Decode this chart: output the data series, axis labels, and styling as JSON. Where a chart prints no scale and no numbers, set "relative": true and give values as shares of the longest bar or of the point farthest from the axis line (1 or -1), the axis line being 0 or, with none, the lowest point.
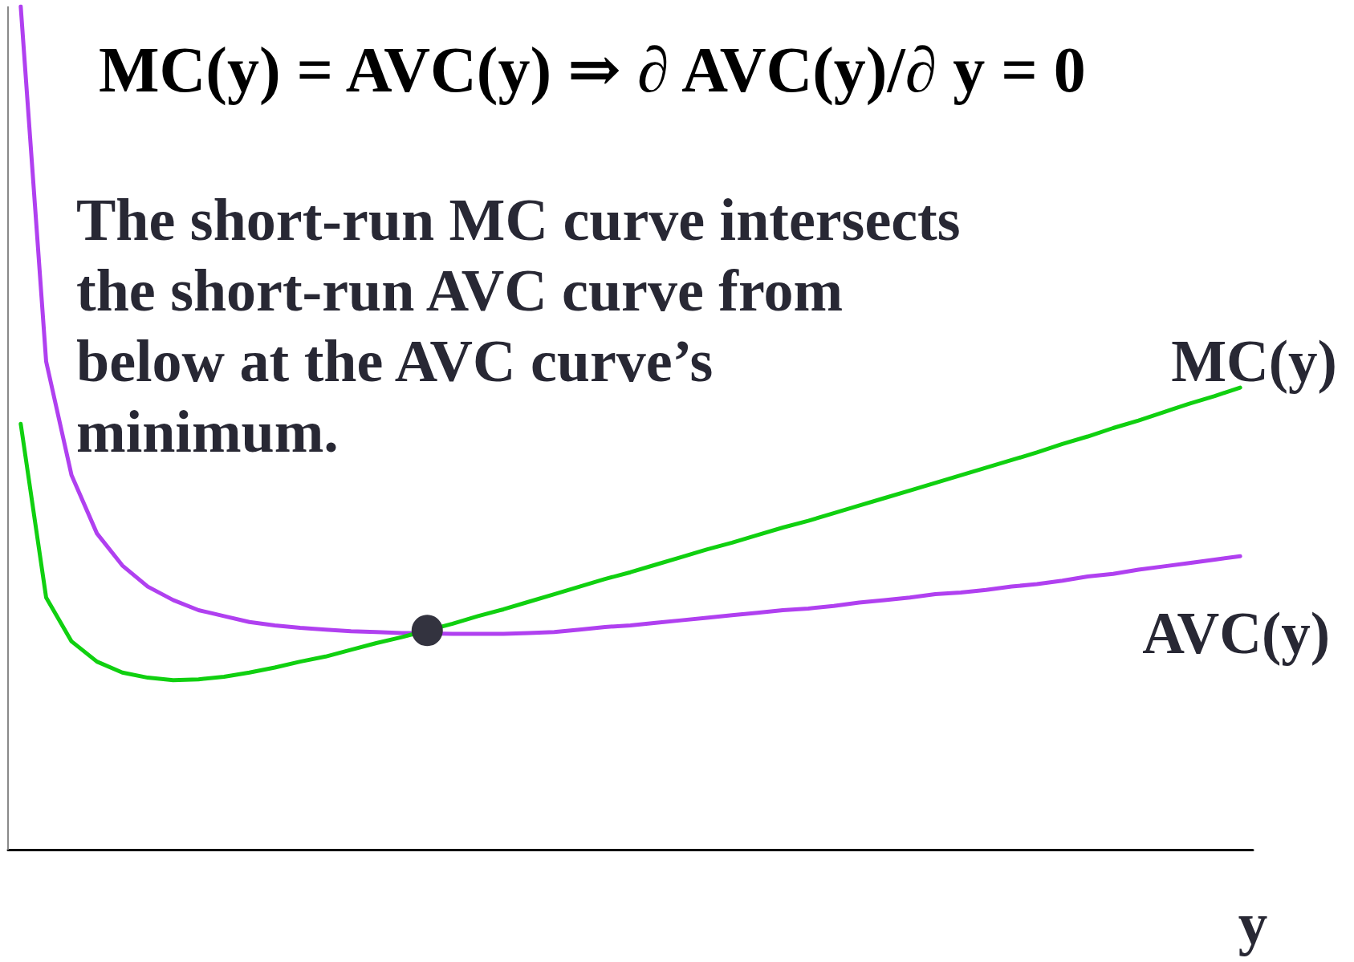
{
  "chart_data": {
    "type": "line",
    "title": "MC(y) = AVC(y) ⇒ ∂ AVC(y)/∂ y = 0",
    "xlabel": "y",
    "relative": true,
    "annotations": [
      "The short-run MC curve intersects\nthe short-run AVC curve from\nbelow at the AVC curve’s\nminimum."
    ],
    "categories": [
      null,
      null,
      null,
      null,
      null,
      null,
      null,
      null,
      null,
      null,
      null,
      null,
      null,
      null,
      null,
      null,
      null,
      null,
      null,
      null,
      null,
      null,
      null,
      null,
      null,
      null,
      null,
      null,
      null,
      null,
      null,
      null,
      null,
      null,
      null,
      null,
      null,
      null,
      null,
      null,
      null,
      null,
      null,
      null,
      null,
      null,
      null,
      null,
      null
    ],
    "series": [
      {
        "name": "AVC(y)",
        "color": "#b040f0",
        "values": [
          1.0,
          0.579,
          0.444,
          0.375,
          0.337,
          0.312,
          0.296,
          0.284,
          0.277,
          0.27,
          0.266,
          0.263,
          0.261,
          0.259,
          0.258,
          0.257,
          null,
          0.256,
          0.256,
          0.256,
          0.257,
          0.258,
          0.261,
          0.264,
          0.266,
          0.269,
          0.272,
          0.275,
          0.278,
          0.281,
          0.284,
          0.286,
          0.289,
          0.293,
          0.296,
          0.299,
          0.303,
          0.305,
          0.308,
          0.312,
          0.315,
          0.319,
          0.324,
          0.327,
          0.332,
          0.336,
          0.34,
          0.344,
          0.348
        ]
      },
      {
        "name": "MC(y)",
        "color": "#10d010",
        "values": [
          0.505,
          0.299,
          0.247,
          0.223,
          0.21,
          0.204,
          0.201,
          0.202,
          0.205,
          0.21,
          0.216,
          0.223,
          0.229,
          0.237,
          0.245,
          0.252,
          null,
          0.268,
          0.277,
          0.285,
          0.294,
          0.303,
          0.312,
          0.321,
          0.329,
          0.338,
          0.347,
          0.356,
          0.364,
          0.373,
          0.382,
          0.39,
          0.399,
          0.408,
          0.417,
          0.426,
          0.435,
          0.444,
          0.453,
          0.462,
          0.471,
          0.481,
          0.49,
          0.5,
          0.509,
          0.519,
          0.529,
          0.538,
          0.548
        ]
      },
      {
        "color": "#33333f",
        "marker": "circle",
        "values": [
          null,
          null,
          null,
          null,
          null,
          null,
          null,
          null,
          null,
          null,
          null,
          null,
          null,
          null,
          null,
          null,
          0.26,
          null,
          null,
          null,
          null,
          null,
          null,
          null,
          null,
          null,
          null,
          null,
          null,
          null,
          null,
          null,
          null,
          null,
          null,
          null,
          null,
          null,
          null,
          null,
          null,
          null,
          null,
          null,
          null,
          null,
          null,
          null,
          null
        ]
      }
    ]
  }
}
